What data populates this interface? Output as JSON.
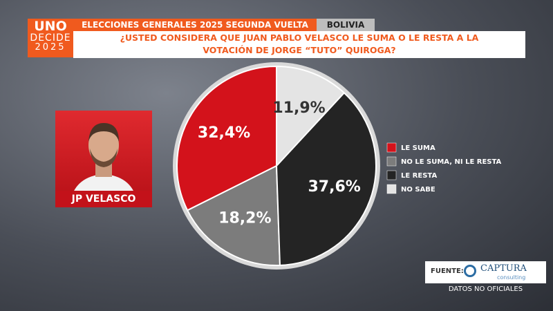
{
  "logo": {
    "lines": [
      "UNO",
      "DECIDE",
      "2025"
    ]
  },
  "header": {
    "title": "ELECCIONES GENERALES 2025 SEGUNDA VUELTA",
    "country": "BOLIVIA"
  },
  "question": {
    "lines": [
      "¿USTED CONSIDERA QUE JUAN PABLO VELASCO LE SUMA O LE RESTA A LA",
      "VOTACIÓN DE JORGE “TUTO” QUIROGA?"
    ]
  },
  "candidate": {
    "name": "JP VELASCO"
  },
  "source": {
    "label": "FUENTE:",
    "brand": "CAPTURA",
    "brand_sub": "consulting",
    "note": "DATOS NO OFICIALES"
  },
  "chart_data": {
    "type": "pie",
    "categories": [
      "LE SUMA",
      "NO LE SUMA, NI LE RESTA",
      "LE RESTA",
      "NO SABE"
    ],
    "values": [
      32.4,
      18.2,
      37.6,
      11.9
    ],
    "value_labels": [
      "32,4%",
      "18,2%",
      "37,6%",
      "11,9%"
    ],
    "colors": [
      "#d3121b",
      "#7c7c7c",
      "#242424",
      "#e4e4e4"
    ]
  }
}
